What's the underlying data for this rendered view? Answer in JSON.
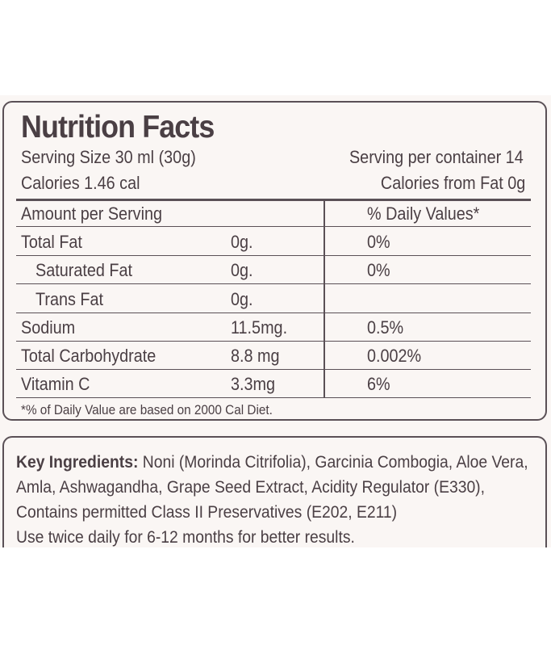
{
  "title": "Nutrition Facts",
  "serving_size": "Serving Size 30 ml (30g)",
  "servings_per_container": "Serving per container 14",
  "calories": "Calories 1.46 cal",
  "calories_from_fat": "Calories from Fat 0g",
  "header": {
    "amount": "Amount per Serving",
    "daily": "% Daily Values*"
  },
  "rows": [
    {
      "name": "Total Fat",
      "amount": "0g.",
      "dv": "0%"
    },
    {
      "name": "Saturated Fat",
      "amount": "0g.",
      "dv": "0%"
    },
    {
      "name": "Trans Fat",
      "amount": "0g.",
      "dv": ""
    },
    {
      "name": "Sodium",
      "amount": "11.5mg.",
      "dv": "0.5%"
    },
    {
      "name": "Total Carbohydrate",
      "amount": "8.8 mg",
      "dv": "0.002%"
    },
    {
      "name": "Vitamin C",
      "amount": "3.3mg",
      "dv": "6%"
    }
  ],
  "footnote": "*% of Daily Value are based on 2000 Cal Diet.",
  "ingredients": {
    "label": "Key Ingredients:",
    "text": "Noni (Morinda Citrifolia), Garcinia Combogia, Aloe Vera, Amla, Ashwagandha, Grape Seed Extract, Acidity Regulator (E330), Contains permitted Class II Preservatives (E202, E211)",
    "usage": "Use twice daily for 6-12 months for better results."
  }
}
